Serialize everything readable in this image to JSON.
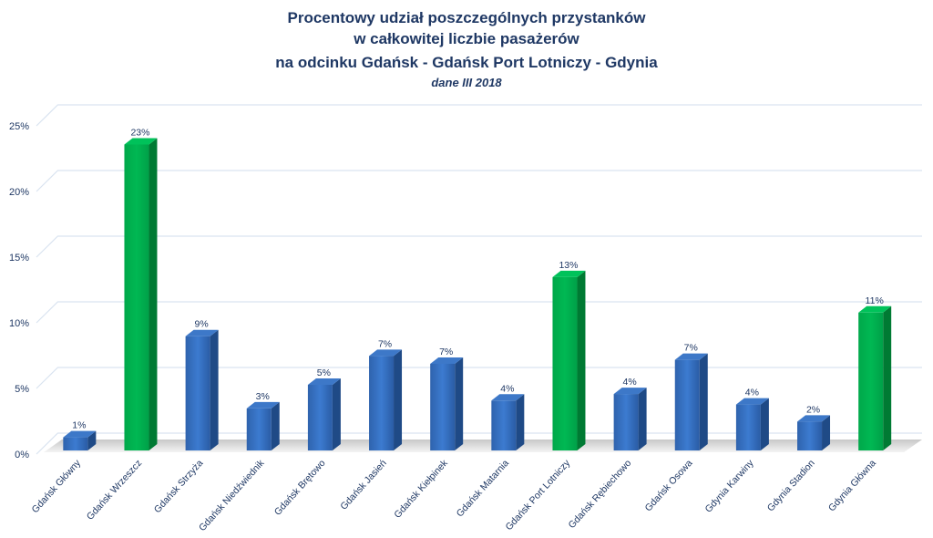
{
  "chart_data": {
    "type": "bar",
    "title": [
      "Procentowy udział poszczególnych przystanków",
      "w całkowitej liczbie pasażerów",
      "na odcinku Gdańsk - Gdańsk Port Lotniczy - Gdynia"
    ],
    "subtitle": "dane III 2018",
    "categories": [
      "Gdańsk Główny",
      "Gdańsk Wrzeszcz",
      "Gdańsk Strzyża",
      "Gdańsk Niedźwiednik",
      "Gdańsk Brętowo",
      "Gdańsk Jasień",
      "Gdańsk Kiełpinek",
      "Gdańsk Matarnia",
      "Gdańsk Port Lotniczy",
      "Gdańsk Rębiechowo",
      "Gdańsk Osowa",
      "Gdynia Karwiny",
      "Gdynia Stadion",
      "Gdynia Główna"
    ],
    "values": [
      1.0,
      23.3,
      8.7,
      3.2,
      5.0,
      7.2,
      6.6,
      3.8,
      13.2,
      4.3,
      6.9,
      3.5,
      2.2,
      10.5
    ],
    "data_labels": [
      "1%",
      "23%",
      "9%",
      "3%",
      "5%",
      "7%",
      "7%",
      "4%",
      "13%",
      "4%",
      "7%",
      "4%",
      "2%",
      "11%"
    ],
    "highlighted": [
      false,
      true,
      false,
      false,
      false,
      false,
      false,
      false,
      true,
      false,
      false,
      false,
      false,
      true
    ],
    "yticks": [
      "0%",
      "5%",
      "10%",
      "15%",
      "20%",
      "25%"
    ],
    "ylim": [
      0,
      25
    ],
    "xlabel": "",
    "ylabel": "",
    "grid": true,
    "style": "3d-column",
    "colors": {
      "default": "#2e6bc0",
      "highlight": "#00b050",
      "text": "#1f3864"
    }
  }
}
